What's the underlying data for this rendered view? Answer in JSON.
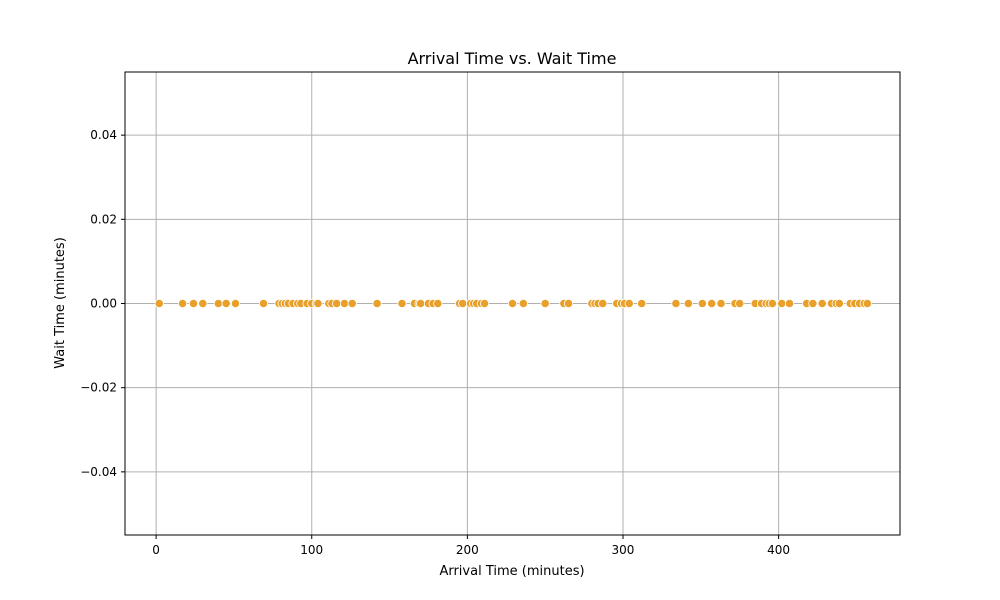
{
  "chart_data": {
    "type": "scatter",
    "title": "Arrival Time vs. Wait Time",
    "xlabel": "Arrival Time (minutes)",
    "ylabel": "Wait Time (minutes)",
    "xlim": [
      -20,
      478
    ],
    "ylim": [
      -0.055,
      0.055
    ],
    "xticks": [
      0,
      100,
      200,
      300,
      400
    ],
    "yticks": [
      -0.04,
      -0.02,
      0.0,
      0.02,
      0.04
    ],
    "ytick_labels": [
      "−0.04",
      "−0.02",
      "0.00",
      "0.02",
      "0.04"
    ],
    "grid": true,
    "point_color": "#e8a02a",
    "points": {
      "x": [
        2,
        17,
        24,
        30,
        40,
        45,
        51,
        69,
        79,
        81,
        83,
        85,
        88,
        91,
        93,
        97,
        100,
        103,
        104,
        111,
        113,
        116,
        121,
        126,
        142,
        158,
        166,
        169,
        170,
        175,
        178,
        181,
        195,
        197,
        202,
        204,
        206,
        209,
        211,
        229,
        236,
        250,
        262,
        265,
        280,
        282,
        284,
        287,
        296,
        299,
        301,
        304,
        312,
        334,
        342,
        351,
        357,
        363,
        372,
        375,
        385,
        389,
        392,
        394,
        396,
        402,
        407,
        418,
        422,
        428,
        434,
        437,
        439,
        446,
        449,
        452,
        455,
        457
      ],
      "y": [
        0,
        0,
        0,
        0,
        0,
        0,
        0,
        0,
        0,
        0,
        0,
        0,
        0,
        0,
        0,
        0,
        0,
        0,
        0,
        0,
        0,
        0,
        0,
        0,
        0,
        0,
        0,
        0,
        0,
        0,
        0,
        0,
        0,
        0,
        0,
        0,
        0,
        0,
        0,
        0,
        0,
        0,
        0,
        0,
        0,
        0,
        0,
        0,
        0,
        0,
        0,
        0,
        0,
        0,
        0,
        0,
        0,
        0,
        0,
        0,
        0,
        0,
        0,
        0,
        0,
        0,
        0,
        0,
        0,
        0,
        0,
        0,
        0,
        0,
        0,
        0,
        0,
        0
      ]
    }
  }
}
